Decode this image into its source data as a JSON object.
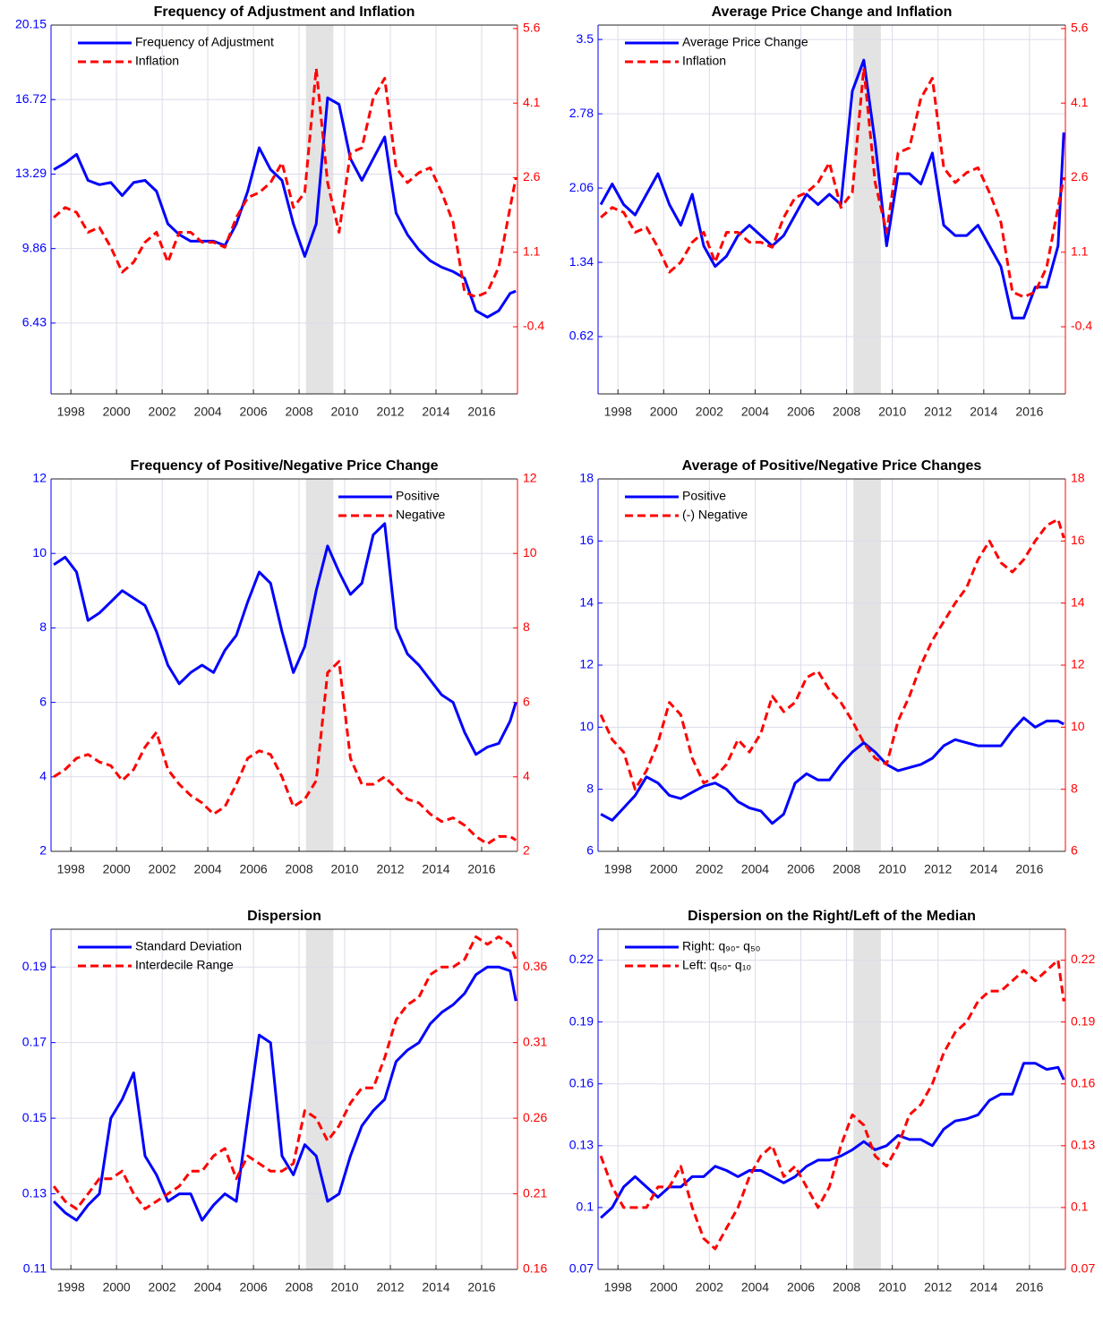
{
  "chart_data": [
    {
      "type": "line",
      "title": "Frequency of Adjustment and Inflation",
      "legend": "upper-left",
      "grid": true,
      "shade": [
        2008.3,
        2009.5
      ],
      "shade_color": "#e3e3e3",
      "xlim": [
        1997.13,
        2017.57
      ],
      "xticks": [
        1998,
        2000,
        2002,
        2004,
        2006,
        2008,
        2010,
        2012,
        2014,
        2016
      ],
      "ylim": [
        3.17,
        20.15
      ],
      "yticks": [
        6.43,
        9.86,
        13.29,
        16.72,
        20.15
      ],
      "y2lim": [
        -1.75,
        5.67
      ],
      "y2ticks": [
        -0.4,
        1.1,
        2.6,
        4.1,
        5.6
      ],
      "x": [
        1997.25,
        1997.75,
        1998.25,
        1998.75,
        1999.25,
        1999.75,
        2000.25,
        2000.75,
        2001.25,
        2001.75,
        2002.25,
        2002.75,
        2003.25,
        2003.75,
        2004.25,
        2004.75,
        2005.25,
        2005.75,
        2006.25,
        2006.75,
        2007.25,
        2007.75,
        2008.25,
        2008.75,
        2009.25,
        2009.75,
        2010.25,
        2010.75,
        2011.25,
        2011.75,
        2012.25,
        2012.75,
        2013.25,
        2013.75,
        2014.25,
        2014.75,
        2015.25,
        2015.75,
        2016.25,
        2016.75,
        2017.25,
        2017.5
      ],
      "series": [
        {
          "name": "Frequency of Adjustment",
          "color": "#0000ff",
          "dash": false,
          "values": [
            13.5,
            13.8,
            14.2,
            13.0,
            12.8,
            12.9,
            12.3,
            12.9,
            13.0,
            12.5,
            11.0,
            10.5,
            10.2,
            10.2,
            10.2,
            10.0,
            11.0,
            12.5,
            14.5,
            13.5,
            13.0,
            11.0,
            9.5,
            11.0,
            16.8,
            16.5,
            14.0,
            13.0,
            14.0,
            15.0,
            11.5,
            10.5,
            9.8,
            9.3,
            9.0,
            8.8,
            8.5,
            7.0,
            6.7,
            7.0,
            7.8,
            7.9
          ]
        },
        {
          "name": "Inflation",
          "color": "#ff0000",
          "dash": true,
          "axis": "y2",
          "values": [
            1.8,
            2.0,
            1.9,
            1.5,
            1.6,
            1.2,
            0.7,
            0.9,
            1.3,
            1.5,
            0.9,
            1.5,
            1.5,
            1.3,
            1.3,
            1.2,
            1.8,
            2.2,
            2.3,
            2.5,
            2.9,
            2.0,
            2.3,
            4.8,
            2.5,
            1.5,
            3.1,
            3.2,
            4.2,
            4.6,
            2.8,
            2.5,
            2.7,
            2.8,
            2.3,
            1.7,
            0.3,
            0.2,
            0.3,
            0.8,
            2.0,
            2.6
          ]
        }
      ]
    },
    {
      "type": "line",
      "title": "Average Price Change and Inflation",
      "legend": "upper-left",
      "grid": true,
      "shade": [
        2008.3,
        2009.5
      ],
      "shade_color": "#e3e3e3",
      "xlim": [
        1997.13,
        2017.57
      ],
      "xticks": [
        1998,
        2000,
        2002,
        2004,
        2006,
        2008,
        2010,
        2012,
        2014,
        2016
      ],
      "ylim": [
        0.065,
        3.64
      ],
      "yticks": [
        0.62,
        1.34,
        2.06,
        2.78,
        3.5
      ],
      "y2lim": [
        -1.75,
        5.67
      ],
      "y2ticks": [
        -0.4,
        1.1,
        2.6,
        4.1,
        5.6
      ],
      "x": [
        1997.25,
        1997.75,
        1998.25,
        1998.75,
        1999.25,
        1999.75,
        2000.25,
        2000.75,
        2001.25,
        2001.75,
        2002.25,
        2002.75,
        2003.25,
        2003.75,
        2004.25,
        2004.75,
        2005.25,
        2005.75,
        2006.25,
        2006.75,
        2007.25,
        2007.75,
        2008.25,
        2008.75,
        2009.25,
        2009.75,
        2010.25,
        2010.75,
        2011.25,
        2011.75,
        2012.25,
        2012.75,
        2013.25,
        2013.75,
        2014.25,
        2014.75,
        2015.25,
        2015.75,
        2016.25,
        2016.75,
        2017.25,
        2017.5
      ],
      "series": [
        {
          "name": "Average Price Change",
          "color": "#0000ff",
          "dash": false,
          "values": [
            1.9,
            2.1,
            1.9,
            1.8,
            2.0,
            2.2,
            1.9,
            1.7,
            2.0,
            1.5,
            1.3,
            1.4,
            1.6,
            1.7,
            1.6,
            1.5,
            1.6,
            1.8,
            2.0,
            1.9,
            2.0,
            1.9,
            3.0,
            3.3,
            2.5,
            1.5,
            2.2,
            2.2,
            2.1,
            2.4,
            1.7,
            1.6,
            1.6,
            1.7,
            1.5,
            1.3,
            0.8,
            0.8,
            1.1,
            1.1,
            1.5,
            2.6
          ]
        },
        {
          "name": "Inflation",
          "color": "#ff0000",
          "dash": true,
          "axis": "y2",
          "values": [
            1.8,
            2.0,
            1.9,
            1.5,
            1.6,
            1.2,
            0.7,
            0.9,
            1.3,
            1.5,
            0.9,
            1.5,
            1.5,
            1.3,
            1.3,
            1.2,
            1.8,
            2.2,
            2.3,
            2.5,
            2.9,
            2.0,
            2.3,
            4.8,
            2.5,
            1.5,
            3.1,
            3.2,
            4.2,
            4.6,
            2.8,
            2.5,
            2.7,
            2.8,
            2.3,
            1.7,
            0.3,
            0.2,
            0.3,
            0.8,
            2.0,
            2.6
          ]
        }
      ]
    },
    {
      "type": "line",
      "title": "Frequency of Positive/Negative Price Change",
      "legend": "upper-right",
      "grid": true,
      "shade": [
        2008.3,
        2009.5
      ],
      "shade_color": "#e3e3e3",
      "xlim": [
        1997.13,
        2017.57
      ],
      "xticks": [
        1998,
        2000,
        2002,
        2004,
        2006,
        2008,
        2010,
        2012,
        2014,
        2016
      ],
      "ylim": [
        2,
        12
      ],
      "yticks": [
        2,
        4,
        6,
        8,
        10,
        12
      ],
      "y2lim": [
        2,
        12
      ],
      "y2ticks": [
        2,
        4,
        6,
        8,
        10,
        12
      ],
      "x": [
        1997.25,
        1997.75,
        1998.25,
        1998.75,
        1999.25,
        1999.75,
        2000.25,
        2000.75,
        2001.25,
        2001.75,
        2002.25,
        2002.75,
        2003.25,
        2003.75,
        2004.25,
        2004.75,
        2005.25,
        2005.75,
        2006.25,
        2006.75,
        2007.25,
        2007.75,
        2008.25,
        2008.75,
        2009.25,
        2009.75,
        2010.25,
        2010.75,
        2011.25,
        2011.75,
        2012.25,
        2012.75,
        2013.25,
        2013.75,
        2014.25,
        2014.75,
        2015.25,
        2015.75,
        2016.25,
        2016.75,
        2017.25,
        2017.5
      ],
      "series": [
        {
          "name": "Positive",
          "color": "#0000ff",
          "dash": false,
          "values": [
            9.7,
            9.9,
            9.5,
            8.2,
            8.4,
            8.7,
            9.0,
            8.8,
            8.6,
            7.9,
            7.0,
            6.5,
            6.8,
            7.0,
            6.8,
            7.4,
            7.8,
            8.7,
            9.5,
            9.2,
            7.9,
            6.8,
            7.5,
            9.0,
            10.2,
            9.5,
            8.9,
            9.2,
            10.5,
            10.8,
            8.0,
            7.3,
            7.0,
            6.6,
            6.2,
            6.0,
            5.2,
            4.6,
            4.8,
            4.9,
            5.5,
            6.0
          ]
        },
        {
          "name": "Negative",
          "color": "#ff0000",
          "dash": true,
          "axis": "y2",
          "values": [
            4.0,
            4.2,
            4.5,
            4.6,
            4.4,
            4.3,
            3.9,
            4.2,
            4.8,
            5.2,
            4.2,
            3.8,
            3.5,
            3.3,
            3.0,
            3.2,
            3.8,
            4.5,
            4.7,
            4.6,
            4.0,
            3.2,
            3.4,
            3.9,
            6.8,
            7.1,
            4.5,
            3.8,
            3.8,
            4.0,
            3.7,
            3.4,
            3.3,
            3.0,
            2.8,
            2.9,
            2.7,
            2.4,
            2.2,
            2.4,
            2.4,
            2.3
          ]
        }
      ]
    },
    {
      "type": "line",
      "title": "Average of Positive/Negative Price Changes",
      "legend": "upper-left",
      "grid": true,
      "shade": [
        2008.3,
        2009.5
      ],
      "shade_color": "#e3e3e3",
      "xlim": [
        1997.13,
        2017.57
      ],
      "xticks": [
        1998,
        2000,
        2002,
        2004,
        2006,
        2008,
        2010,
        2012,
        2014,
        2016
      ],
      "ylim": [
        6,
        18
      ],
      "yticks": [
        6,
        8,
        10,
        12,
        14,
        16,
        18
      ],
      "y2lim": [
        6,
        18
      ],
      "y2ticks": [
        6,
        8,
        10,
        12,
        14,
        16,
        18
      ],
      "x": [
        1997.25,
        1997.75,
        1998.25,
        1998.75,
        1999.25,
        1999.75,
        2000.25,
        2000.75,
        2001.25,
        2001.75,
        2002.25,
        2002.75,
        2003.25,
        2003.75,
        2004.25,
        2004.75,
        2005.25,
        2005.75,
        2006.25,
        2006.75,
        2007.25,
        2007.75,
        2008.25,
        2008.75,
        2009.25,
        2009.75,
        2010.25,
        2010.75,
        2011.25,
        2011.75,
        2012.25,
        2012.75,
        2013.25,
        2013.75,
        2014.25,
        2014.75,
        2015.25,
        2015.75,
        2016.25,
        2016.75,
        2017.25,
        2017.5
      ],
      "series": [
        {
          "name": "Positive",
          "color": "#0000ff",
          "dash": false,
          "values": [
            7.2,
            7.0,
            7.4,
            7.8,
            8.4,
            8.2,
            7.8,
            7.7,
            7.9,
            8.1,
            8.2,
            8.0,
            7.6,
            7.4,
            7.3,
            6.9,
            7.2,
            8.2,
            8.5,
            8.3,
            8.3,
            8.8,
            9.2,
            9.5,
            9.2,
            8.8,
            8.6,
            8.7,
            8.8,
            9.0,
            9.4,
            9.6,
            9.5,
            9.4,
            9.4,
            9.4,
            9.9,
            10.3,
            10.0,
            10.2,
            10.2,
            10.1
          ]
        },
        {
          "name": "(-) Negative",
          "color": "#ff0000",
          "dash": true,
          "axis": "y2",
          "values": [
            10.4,
            9.6,
            9.2,
            8.0,
            8.6,
            9.5,
            10.8,
            10.4,
            9.0,
            8.2,
            8.4,
            8.8,
            9.6,
            9.2,
            9.8,
            11.0,
            10.5,
            10.8,
            11.6,
            11.8,
            11.2,
            10.8,
            10.2,
            9.5,
            9.0,
            8.8,
            10.2,
            11.0,
            12.0,
            12.8,
            13.4,
            14.0,
            14.5,
            15.4,
            16.0,
            15.3,
            15.0,
            15.4,
            16.0,
            16.5,
            16.7,
            16.1
          ]
        }
      ]
    },
    {
      "type": "line",
      "title": "Dispersion",
      "legend": "upper-left",
      "grid": true,
      "shade": [
        2008.3,
        2009.5
      ],
      "shade_color": "#e3e3e3",
      "xlim": [
        1997.13,
        2017.57
      ],
      "xticks": [
        1998,
        2000,
        2002,
        2004,
        2006,
        2008,
        2010,
        2012,
        2014,
        2016
      ],
      "ylim": [
        0.11,
        0.2
      ],
      "yticks": [
        0.11,
        0.13,
        0.15,
        0.17,
        0.19
      ],
      "y2lim": [
        0.16,
        0.385
      ],
      "y2ticks": [
        0.16,
        0.21,
        0.26,
        0.31,
        0.36
      ],
      "x": [
        1997.25,
        1997.75,
        1998.25,
        1998.75,
        1999.25,
        1999.75,
        2000.25,
        2000.75,
        2001.25,
        2001.75,
        2002.25,
        2002.75,
        2003.25,
        2003.75,
        2004.25,
        2004.75,
        2005.25,
        2005.75,
        2006.25,
        2006.75,
        2007.25,
        2007.75,
        2008.25,
        2008.75,
        2009.25,
        2009.75,
        2010.25,
        2010.75,
        2011.25,
        2011.75,
        2012.25,
        2012.75,
        2013.25,
        2013.75,
        2014.25,
        2014.75,
        2015.25,
        2015.75,
        2016.25,
        2016.75,
        2017.25,
        2017.5
      ],
      "series": [
        {
          "name": "Standard Deviation",
          "color": "#0000ff",
          "dash": false,
          "values": [
            0.128,
            0.125,
            0.123,
            0.127,
            0.13,
            0.15,
            0.155,
            0.162,
            0.14,
            0.135,
            0.128,
            0.13,
            0.13,
            0.123,
            0.127,
            0.13,
            0.128,
            0.15,
            0.172,
            0.17,
            0.14,
            0.135,
            0.143,
            0.14,
            0.128,
            0.13,
            0.14,
            0.148,
            0.152,
            0.155,
            0.165,
            0.168,
            0.17,
            0.175,
            0.178,
            0.18,
            0.183,
            0.188,
            0.19,
            0.19,
            0.189,
            0.181
          ]
        },
        {
          "name": "Interdecile Range",
          "color": "#ff0000",
          "dash": true,
          "axis": "y2",
          "values": [
            0.215,
            0.205,
            0.2,
            0.21,
            0.22,
            0.22,
            0.225,
            0.21,
            0.2,
            0.205,
            0.21,
            0.215,
            0.225,
            0.225,
            0.235,
            0.24,
            0.22,
            0.235,
            0.23,
            0.225,
            0.225,
            0.23,
            0.265,
            0.26,
            0.245,
            0.255,
            0.27,
            0.28,
            0.28,
            0.3,
            0.325,
            0.335,
            0.34,
            0.355,
            0.36,
            0.36,
            0.365,
            0.38,
            0.375,
            0.38,
            0.375,
            0.365
          ]
        }
      ]
    },
    {
      "type": "line",
      "title": "Dispersion on the Right/Left of the Median",
      "legend": "upper-left",
      "grid": true,
      "shade": [
        2008.3,
        2009.5
      ],
      "shade_color": "#e3e3e3",
      "xlim": [
        1997.13,
        2017.57
      ],
      "xticks": [
        1998,
        2000,
        2002,
        2004,
        2006,
        2008,
        2010,
        2012,
        2014,
        2016
      ],
      "ylim": [
        0.07,
        0.235
      ],
      "yticks": [
        0.07,
        0.1,
        0.13,
        0.16,
        0.19,
        0.22
      ],
      "y2lim": [
        0.07,
        0.235
      ],
      "y2ticks": [
        0.07,
        0.1,
        0.13,
        0.16,
        0.19,
        0.22
      ],
      "x": [
        1997.25,
        1997.75,
        1998.25,
        1998.75,
        1999.25,
        1999.75,
        2000.25,
        2000.75,
        2001.25,
        2001.75,
        2002.25,
        2002.75,
        2003.25,
        2003.75,
        2004.25,
        2004.75,
        2005.25,
        2005.75,
        2006.25,
        2006.75,
        2007.25,
        2007.75,
        2008.25,
        2008.75,
        2009.25,
        2009.75,
        2010.25,
        2010.75,
        2011.25,
        2011.75,
        2012.25,
        2012.75,
        2013.25,
        2013.75,
        2014.25,
        2014.75,
        2015.25,
        2015.75,
        2016.25,
        2016.75,
        2017.25,
        2017.5
      ],
      "series": [
        {
          "name": "Right: q₉₀- q₅₀",
          "color": "#0000ff",
          "dash": false,
          "values": [
            0.095,
            0.1,
            0.11,
            0.115,
            0.11,
            0.105,
            0.11,
            0.11,
            0.115,
            0.115,
            0.12,
            0.118,
            0.115,
            0.118,
            0.118,
            0.115,
            0.112,
            0.115,
            0.12,
            0.123,
            0.123,
            0.125,
            0.128,
            0.132,
            0.128,
            0.13,
            0.135,
            0.133,
            0.133,
            0.13,
            0.138,
            0.142,
            0.143,
            0.145,
            0.152,
            0.155,
            0.155,
            0.17,
            0.17,
            0.167,
            0.168,
            0.162
          ]
        },
        {
          "name": "Left: q₅₀- q₁₀",
          "color": "#ff0000",
          "dash": true,
          "axis": "y2",
          "values": [
            0.125,
            0.11,
            0.1,
            0.1,
            0.1,
            0.11,
            0.11,
            0.12,
            0.1,
            0.085,
            0.08,
            0.09,
            0.1,
            0.115,
            0.125,
            0.13,
            0.115,
            0.12,
            0.11,
            0.1,
            0.11,
            0.13,
            0.145,
            0.14,
            0.125,
            0.12,
            0.13,
            0.145,
            0.15,
            0.16,
            0.175,
            0.185,
            0.19,
            0.2,
            0.205,
            0.205,
            0.21,
            0.215,
            0.21,
            0.215,
            0.22,
            0.2
          ]
        }
      ]
    }
  ]
}
